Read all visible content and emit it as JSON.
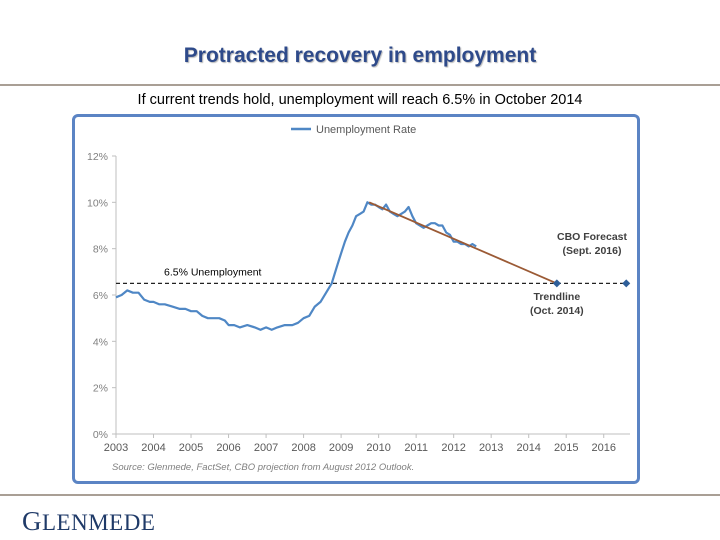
{
  "slide": {
    "title": "Protracted recovery in employment",
    "subtitle": "If current trends hold, unemployment will reach 6.5% in October 2014",
    "brand_first": "G",
    "brand_rest": "LENMEDE"
  },
  "chart_data": {
    "type": "line",
    "title": "",
    "xlabel": "",
    "ylabel": "",
    "xlim": [
      2003,
      2016.7
    ],
    "ylim": [
      0,
      12
    ],
    "x_ticks": [
      2003,
      2004,
      2005,
      2006,
      2007,
      2008,
      2009,
      2010,
      2011,
      2012,
      2013,
      2014,
      2015,
      2016
    ],
    "y_ticks": [
      0,
      2,
      4,
      6,
      8,
      10,
      12
    ],
    "y_tick_labels": [
      "0%",
      "2%",
      "4%",
      "6%",
      "8%",
      "10%",
      "12%"
    ],
    "grid": false,
    "legend": "top-center",
    "series": [
      {
        "name": "Unemployment Rate",
        "color": "#4f87c5",
        "x": [
          2003.0,
          2003.15,
          2003.3,
          2003.45,
          2003.6,
          2003.75,
          2003.9,
          2004.0,
          2004.15,
          2004.3,
          2004.5,
          2004.7,
          2004.85,
          2005.0,
          2005.15,
          2005.3,
          2005.45,
          2005.6,
          2005.75,
          2005.9,
          2006.0,
          2006.15,
          2006.3,
          2006.5,
          2006.7,
          2006.85,
          2007.0,
          2007.15,
          2007.3,
          2007.5,
          2007.7,
          2007.85,
          2008.0,
          2008.15,
          2008.3,
          2008.45,
          2008.6,
          2008.75,
          2008.9,
          2009.0,
          2009.1,
          2009.2,
          2009.3,
          2009.4,
          2009.5,
          2009.6,
          2009.7,
          2009.8,
          2009.9,
          2010.0,
          2010.1,
          2010.2,
          2010.3,
          2010.4,
          2010.5,
          2010.6,
          2010.7,
          2010.8,
          2010.9,
          2011.0,
          2011.1,
          2011.2,
          2011.3,
          2011.4,
          2011.5,
          2011.6,
          2011.7,
          2011.8,
          2011.9,
          2012.0,
          2012.1,
          2012.2,
          2012.3,
          2012.4,
          2012.5,
          2012.6
        ],
        "values": [
          5.9,
          6.0,
          6.2,
          6.1,
          6.1,
          5.8,
          5.7,
          5.7,
          5.6,
          5.6,
          5.5,
          5.4,
          5.4,
          5.3,
          5.3,
          5.1,
          5.0,
          5.0,
          5.0,
          4.9,
          4.7,
          4.7,
          4.6,
          4.7,
          4.6,
          4.5,
          4.6,
          4.5,
          4.6,
          4.7,
          4.7,
          4.8,
          5.0,
          5.1,
          5.5,
          5.7,
          6.1,
          6.5,
          7.3,
          7.8,
          8.3,
          8.7,
          9.0,
          9.4,
          9.5,
          9.6,
          10.0,
          9.9,
          9.9,
          9.8,
          9.7,
          9.9,
          9.6,
          9.5,
          9.4,
          9.5,
          9.6,
          9.8,
          9.4,
          9.1,
          9.0,
          8.9,
          9.0,
          9.1,
          9.1,
          9.0,
          9.0,
          8.7,
          8.6,
          8.3,
          8.3,
          8.2,
          8.2,
          8.1,
          8.2,
          8.1
        ]
      },
      {
        "name": "Trendline",
        "color": "#9b5a35",
        "x": [
          2009.75,
          2014.75
        ],
        "values": [
          10.0,
          6.5
        ]
      },
      {
        "name": "6.5% Unemployment",
        "color": "#222222",
        "dashed": true,
        "x": [
          2003.0,
          2016.6
        ],
        "values": [
          6.5,
          6.5
        ]
      }
    ],
    "markers": [
      {
        "x": 2014.75,
        "y": 6.5
      },
      {
        "x": 2016.6,
        "y": 6.5
      }
    ],
    "annotations": {
      "threshold": "6.5% Unemployment",
      "cbo_line1": "CBO Forecast",
      "cbo_line2": "(Sept. 2016)",
      "trend_line1": "Trendline",
      "trend_line2": "(Oct. 2014)",
      "source": "Source: Glenmede, FactSet, CBO projection from August 2012 Outlook."
    }
  }
}
